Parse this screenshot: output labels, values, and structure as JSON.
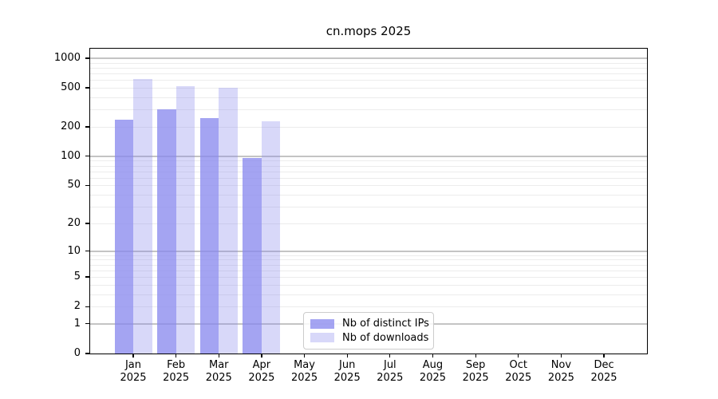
{
  "title": "cn.mops 2025",
  "chart_data": {
    "type": "bar",
    "title": "cn.mops 2025",
    "categories": [
      "Jan 2025",
      "Feb 2025",
      "Mar 2025",
      "Apr 2025",
      "May 2025",
      "Jun 2025",
      "Jul 2025",
      "Aug 2025",
      "Sep 2025",
      "Oct 2025",
      "Nov 2025",
      "Dec 2025"
    ],
    "series": [
      {
        "name": "Nb of distinct IPs",
        "color": "rgba(136,136,238,0.77)",
        "values": [
          236,
          303,
          245,
          96,
          0,
          0,
          0,
          0,
          0,
          0,
          0,
          0
        ]
      },
      {
        "name": "Nb of downloads",
        "color": "rgba(136,136,238,0.33)",
        "values": [
          614,
          521,
          498,
          228,
          0,
          0,
          0,
          0,
          0,
          0,
          0,
          0
        ]
      }
    ],
    "xlabel": "",
    "ylabel": "",
    "yscale": "log10(1+x)",
    "y_max": 1250,
    "y_ticks": [
      0,
      1,
      2,
      5,
      10,
      20,
      50,
      100,
      200,
      500,
      1000
    ],
    "grid": {
      "major_values": [
        1,
        10,
        100,
        1000
      ],
      "minor_base_values": [
        2,
        3,
        4,
        5,
        6,
        7,
        8,
        9
      ],
      "minor_decades": [
        1,
        10,
        100
      ],
      "major_color": "#c4c4c4",
      "minor_color": "#ececec"
    },
    "legend_position": "lower center (inside plot)"
  },
  "colors": {
    "background": "#ffffff",
    "axis": "#000000",
    "text": "#000000",
    "bar_distinct_ips": "rgba(136,136,238,0.77)",
    "bar_downloads": "rgba(136,136,238,0.33)"
  }
}
